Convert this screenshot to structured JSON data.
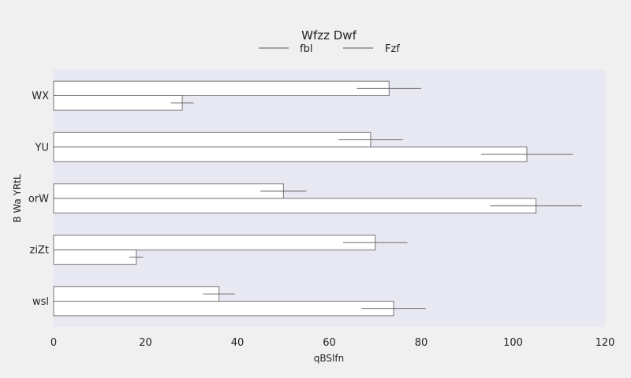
{
  "chart_data": {
    "type": "bar",
    "orientation": "horizontal",
    "title": "Wfzz Dwf",
    "xlabel": "qBSlfn",
    "ylabel": "B Wa YRtL",
    "categories": [
      "WX",
      "YU",
      "orW",
      "ziZt",
      "wsl"
    ],
    "xlim": [
      0,
      120
    ],
    "xticks": [
      0,
      20,
      40,
      60,
      80,
      100,
      120
    ],
    "grid": false,
    "legend_position": "top-center",
    "colors": {
      "plot_background": "#e8e8f2",
      "page_background": "#f0f0f0",
      "bar_fill": "#ffffff",
      "stroke": "#555555"
    },
    "series": [
      {
        "name": "fbl",
        "values": [
          73,
          69,
          50,
          70,
          36
        ],
        "errors": [
          7,
          7,
          5,
          7,
          3.5
        ]
      },
      {
        "name": "Fzf",
        "values": [
          28,
          103,
          105,
          18,
          74
        ],
        "errors": [
          2.5,
          10,
          10,
          1.5,
          7
        ]
      }
    ]
  }
}
